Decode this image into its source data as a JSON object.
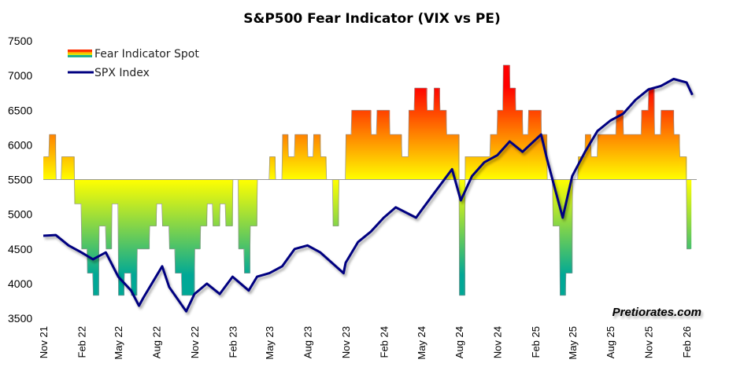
{
  "chart_data": {
    "type": "line",
    "title": "S&P500 Fear Indicator (VIX vs PE)",
    "watermark": "Pretiorates.com",
    "ylim": [
      3500,
      7500
    ],
    "yticks": [
      3500,
      4000,
      4500,
      5000,
      5500,
      6000,
      6500,
      7000,
      7500
    ],
    "baseline": 5500,
    "xticks": [
      "Nov 21",
      "Feb 22",
      "May 22",
      "Aug 22",
      "Nov 22",
      "Feb 23",
      "May 23",
      "Aug 23",
      "Nov 23",
      "Feb 24",
      "May 24",
      "Aug 24",
      "Nov 24",
      "Feb 25",
      "May 25",
      "Aug 25",
      "Nov 25",
      "Feb 26"
    ],
    "xtick_dates": [
      "2021-11-01",
      "2022-02-01",
      "2022-05-01",
      "2022-08-01",
      "2022-11-01",
      "2023-02-01",
      "2023-05-01",
      "2023-08-01",
      "2023-11-01",
      "2024-02-01",
      "2024-05-01",
      "2024-08-01",
      "2024-11-01",
      "2025-02-01",
      "2025-05-01",
      "2025-08-01",
      "2025-11-01",
      "2026-02-01"
    ],
    "legend_position": "top-left",
    "grid": false,
    "colors": {
      "spx": "#000080",
      "fear_high": "#ff0000",
      "fear_mid": "#ffff00",
      "fear_low": "#00a896",
      "baseline": "#999999"
    },
    "series": [
      {
        "name": "Fear Indicator Spot",
        "kind": "step-area",
        "months": [
          "2021-11",
          "2021-12",
          "2022-01",
          "2022-02",
          "2022-03",
          "2022-04",
          "2022-05",
          "2022-06",
          "2022-07",
          "2022-08",
          "2022-09",
          "2022-10",
          "2022-11",
          "2022-12",
          "2023-01",
          "2023-02",
          "2023-03",
          "2023-04",
          "2023-05",
          "2023-06",
          "2023-07",
          "2023-08",
          "2023-09",
          "2023-10",
          "2023-11",
          "2023-12",
          "2024-01",
          "2024-02",
          "2024-03",
          "2024-04",
          "2024-05",
          "2024-06",
          "2024-07",
          "2024-08",
          "2024-09",
          "2024-10",
          "2024-11",
          "2024-12",
          "2025-01",
          "2025-02",
          "2025-03",
          "2025-04",
          "2025-05",
          "2025-06",
          "2025-07",
          "2025-08",
          "2025-09",
          "2025-10",
          "2025-11",
          "2025-12",
          "2026-01",
          "2026-02"
        ],
        "half_month_values": [
          [
            5830,
            6150
          ],
          [
            5500,
            5830
          ],
          [
            5830,
            5150
          ],
          [
            4500,
            4150
          ],
          [
            3830,
            4830
          ],
          [
            4500,
            5150
          ],
          [
            3830,
            4150
          ],
          [
            3830,
            4500
          ],
          [
            4500,
            4830
          ],
          [
            5150,
            4830
          ],
          [
            4500,
            4150
          ],
          [
            3830,
            3830
          ],
          [
            4500,
            4830
          ],
          [
            5150,
            4830
          ],
          [
            5150,
            4830
          ],
          [
            5500,
            4500
          ],
          [
            4150,
            4830
          ],
          [
            5500,
            5500
          ],
          [
            5830,
            5500
          ],
          [
            6150,
            5830
          ],
          [
            6150,
            6150
          ],
          [
            5830,
            6150
          ],
          [
            5830,
            5500
          ],
          [
            4830,
            5500
          ],
          [
            6150,
            6500
          ],
          [
            6500,
            6500
          ],
          [
            6150,
            6500
          ],
          [
            6500,
            6150
          ],
          [
            6150,
            5830
          ],
          [
            6500,
            6820
          ],
          [
            6820,
            6500
          ],
          [
            6820,
            6500
          ],
          [
            6150,
            6150
          ],
          [
            3830,
            5830
          ],
          [
            5830,
            5830
          ],
          [
            5830,
            6150
          ],
          [
            6500,
            7150
          ],
          [
            6820,
            6500
          ],
          [
            6150,
            6500
          ],
          [
            6500,
            6150
          ],
          [
            5500,
            4830
          ],
          [
            3830,
            4150
          ],
          [
            5500,
            5830
          ],
          [
            6150,
            5830
          ],
          [
            6150,
            6150
          ],
          [
            6150,
            6500
          ],
          [
            6150,
            6150
          ],
          [
            6150,
            6500
          ],
          [
            6820,
            6150
          ],
          [
            6500,
            6500
          ],
          [
            6150,
            5830
          ],
          [
            4500
          ]
        ]
      },
      {
        "name": "SPX Index",
        "kind": "line",
        "dates": [
          "2021-11-01",
          "2021-12-01",
          "2022-01-01",
          "2022-02-01",
          "2022-03-01",
          "2022-04-01",
          "2022-05-01",
          "2022-06-01",
          "2022-06-20",
          "2022-07-01",
          "2022-08-15",
          "2022-09-01",
          "2022-10-12",
          "2022-11-01",
          "2022-12-01",
          "2023-01-01",
          "2023-02-01",
          "2023-03-12",
          "2023-04-01",
          "2023-05-01",
          "2023-06-01",
          "2023-07-01",
          "2023-08-01",
          "2023-09-01",
          "2023-10-27",
          "2023-11-01",
          "2023-12-01",
          "2024-01-01",
          "2024-02-01",
          "2024-03-01",
          "2024-04-19",
          "2024-05-01",
          "2024-06-01",
          "2024-07-15",
          "2024-08-05",
          "2024-09-01",
          "2024-10-01",
          "2024-11-01",
          "2024-12-01",
          "2025-01-01",
          "2025-02-15",
          "2025-03-01",
          "2025-04-08",
          "2025-05-01",
          "2025-06-01",
          "2025-07-01",
          "2025-08-01",
          "2025-09-01",
          "2025-10-01",
          "2025-11-01",
          "2025-12-01",
          "2026-01-01",
          "2026-02-01",
          "2026-02-15"
        ],
        "values": [
          4690,
          4700,
          4550,
          4450,
          4350,
          4450,
          4100,
          3900,
          3680,
          3800,
          4250,
          3950,
          3600,
          3850,
          4000,
          3850,
          4100,
          3900,
          4100,
          4150,
          4250,
          4500,
          4550,
          4450,
          4150,
          4300,
          4600,
          4750,
          4950,
          5100,
          4950,
          5050,
          5300,
          5650,
          5200,
          5550,
          5750,
          5850,
          6050,
          5900,
          6150,
          5800,
          4950,
          5550,
          5900,
          6200,
          6350,
          6450,
          6650,
          6800,
          6850,
          6950,
          6900,
          6720
        ]
      }
    ]
  }
}
